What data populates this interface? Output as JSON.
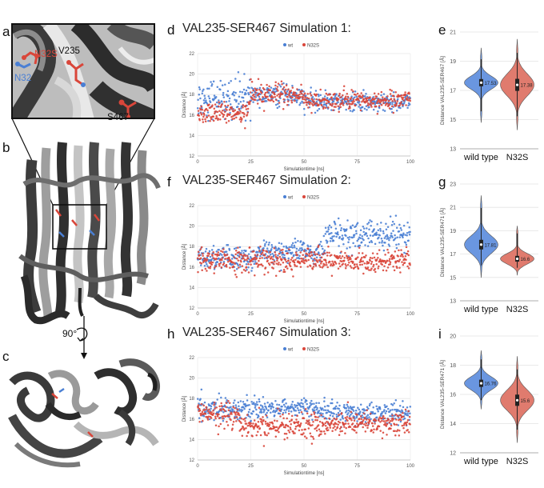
{
  "panel_letters": {
    "a": "a",
    "b": "b",
    "c": "c",
    "d": "d",
    "e": "e",
    "f": "f",
    "g": "g",
    "h": "h",
    "i": "i"
  },
  "structure": {
    "label_n32s": "N32S",
    "label_n32": "N32",
    "label_v235": "V235",
    "label_s467": "S467",
    "rotation": "90°",
    "colors": {
      "wt": "#4a7fd4",
      "mutant": "#d9463a",
      "protein_dark": "#2e2e2e",
      "protein_light": "#9a9a9a"
    }
  },
  "chart_data": [
    {
      "panel": "d",
      "type": "scatter",
      "title": "VAL235-SER467 Simulation 1:",
      "xlabel": "Simulationtime [ns]",
      "ylabel": "Distance [Å]",
      "xlim": [
        0,
        100
      ],
      "ylim": [
        12,
        22
      ],
      "xticks": [
        0,
        25,
        50,
        75,
        100
      ],
      "yticks": [
        12,
        14,
        16,
        18,
        20,
        22
      ],
      "legend_position": "top-center",
      "series": [
        {
          "name": "wt",
          "color": "#4a7fd4",
          "segments": [
            [
              0,
              25,
              17.6,
              0.9
            ],
            [
              25,
              50,
              17.9,
              0.5
            ],
            [
              50,
              100,
              17.3,
              0.45
            ]
          ]
        },
        {
          "name": "N32S",
          "color": "#d9463a",
          "segments": [
            [
              0,
              25,
              16.2,
              0.5
            ],
            [
              25,
              50,
              18.0,
              0.55
            ],
            [
              50,
              100,
              17.4,
              0.45
            ]
          ]
        }
      ]
    },
    {
      "panel": "f",
      "type": "scatter",
      "title": "VAL235-SER467 Simulation 2:",
      "xlabel": "Simulationtime [ns]",
      "ylabel": "Distance [Å]",
      "xlim": [
        0,
        100
      ],
      "ylim": [
        12,
        22
      ],
      "xticks": [
        0,
        25,
        50,
        75,
        100
      ],
      "yticks": [
        12,
        14,
        16,
        18,
        20,
        22
      ],
      "legend_position": "top-center",
      "series": [
        {
          "name": "wt",
          "color": "#4a7fd4",
          "segments": [
            [
              0,
              30,
              16.9,
              0.55
            ],
            [
              30,
              60,
              17.5,
              0.55
            ],
            [
              60,
              100,
              19.0,
              0.8
            ]
          ]
        },
        {
          "name": "N32S",
          "color": "#d9463a",
          "segments": [
            [
              0,
              30,
              16.6,
              0.6
            ],
            [
              30,
              60,
              16.7,
              0.55
            ],
            [
              60,
              100,
              16.5,
              0.55
            ]
          ]
        }
      ]
    },
    {
      "panel": "h",
      "type": "scatter",
      "title": "VAL235-SER467 Simulation 3:",
      "xlabel": "Simulationtime [ns]",
      "ylabel": "Distance [Å]",
      "xlim": [
        0,
        100
      ],
      "ylim": [
        12,
        22
      ],
      "xticks": [
        0,
        25,
        50,
        75,
        100
      ],
      "yticks": [
        12,
        14,
        16,
        18,
        20,
        22
      ],
      "legend_position": "top-center",
      "series": [
        {
          "name": "wt",
          "color": "#4a7fd4",
          "segments": [
            [
              0,
              20,
              17.0,
              0.6
            ],
            [
              20,
              60,
              17.1,
              0.5
            ],
            [
              60,
              100,
              16.6,
              0.5
            ]
          ]
        },
        {
          "name": "N32S",
          "color": "#d9463a",
          "segments": [
            [
              0,
              20,
              16.5,
              0.6
            ],
            [
              20,
              60,
              15.4,
              0.6
            ],
            [
              60,
              100,
              15.5,
              0.6
            ]
          ]
        }
      ]
    },
    {
      "panel": "e",
      "type": "violin",
      "ylabel": "Distance VAL235-SER467 [Å]",
      "ylim": [
        13,
        21
      ],
      "yticks": [
        13,
        15,
        17,
        19,
        21
      ],
      "categories": [
        "wild type",
        "N32S"
      ],
      "medians": [
        17.53,
        17.38
      ],
      "median_labels": [
        "17.53",
        "17.38"
      ],
      "colors": [
        "#6a96e0",
        "#e07b6e"
      ],
      "ranges": [
        [
          14.8,
          19.9
        ],
        [
          14.3,
          20.5
        ]
      ],
      "spread": [
        0.45,
        0.75
      ]
    },
    {
      "panel": "g",
      "type": "violin",
      "ylabel": "Distance VAL235-SER471 [Å]",
      "ylim": [
        13,
        23
      ],
      "yticks": [
        13,
        15,
        17,
        19,
        21,
        23
      ],
      "categories": [
        "wild type",
        "N32S"
      ],
      "medians": [
        17.81,
        16.6
      ],
      "median_labels": [
        "17.81",
        "16.6"
      ],
      "colors": [
        "#6a96e0",
        "#e07b6e"
      ],
      "ranges": [
        [
          15.0,
          22.0
        ],
        [
          15.2,
          19.4
        ]
      ],
      "spread": [
        0.75,
        0.45
      ]
    },
    {
      "panel": "i",
      "type": "violin",
      "ylabel": "Distance VAL235-SER471 [Å]",
      "ylim": [
        12,
        20
      ],
      "yticks": [
        12,
        14,
        16,
        18,
        20
      ],
      "categories": [
        "wild type",
        "N32S"
      ],
      "medians": [
        16.76,
        15.6
      ],
      "median_labels": [
        "16.76",
        "15.6"
      ],
      "colors": [
        "#6a96e0",
        "#e07b6e"
      ],
      "ranges": [
        [
          15.0,
          19.0
        ],
        [
          12.7,
          18.6
        ]
      ],
      "spread": [
        0.45,
        0.7
      ]
    }
  ]
}
